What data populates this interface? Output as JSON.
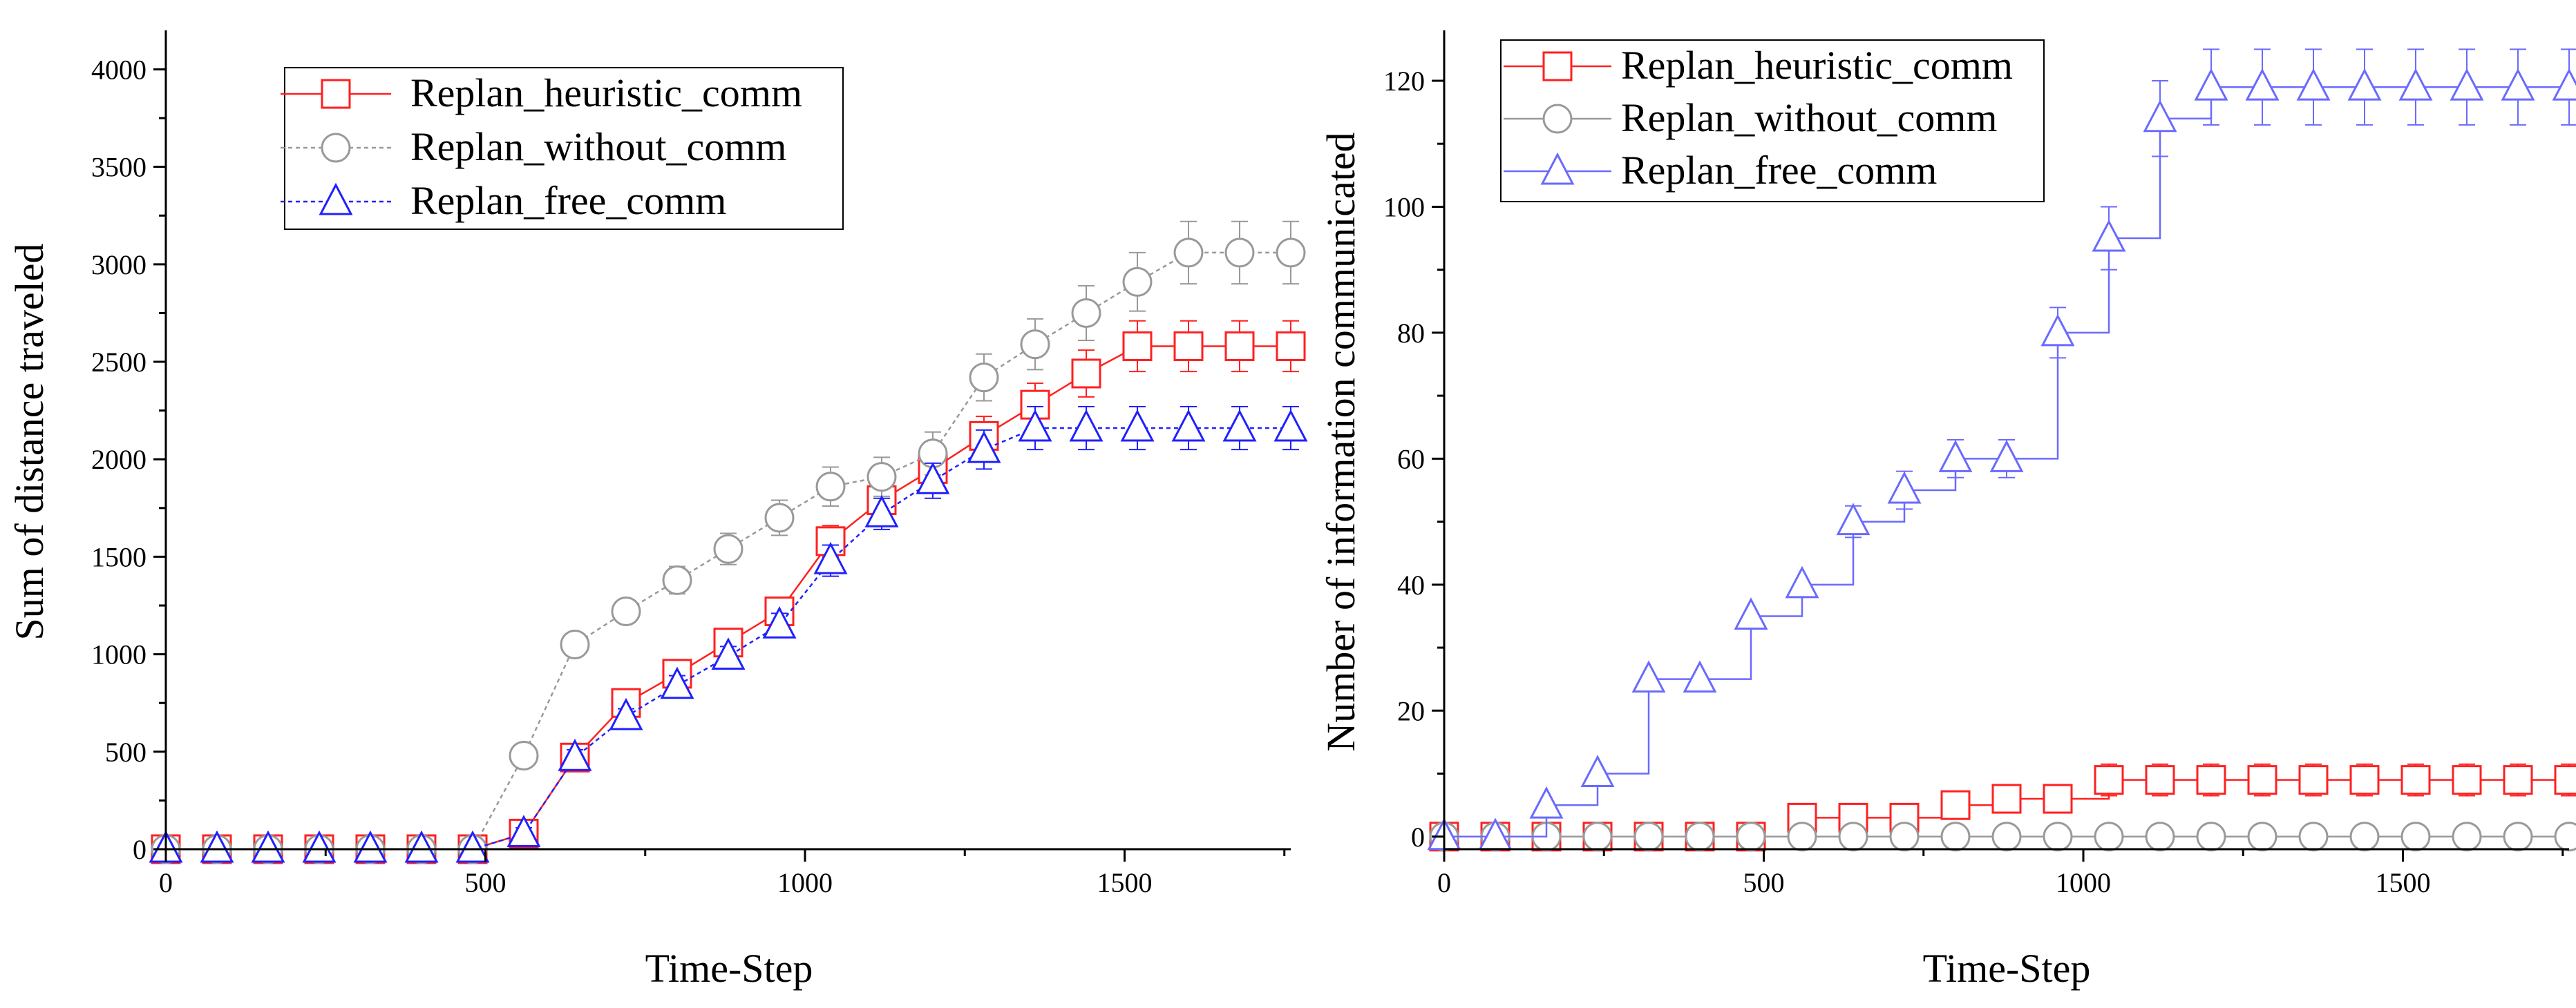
{
  "chart_data": [
    {
      "type": "line",
      "xlabel": "Time-Step",
      "ylabel": "Sum of distance traveled",
      "xlim": [
        0,
        1760
      ],
      "ylim": [
        0,
        4200
      ],
      "xticks": [
        0,
        500,
        1000,
        1500
      ],
      "yticks": [
        0,
        500,
        1000,
        1500,
        2000,
        2500,
        3000,
        3500,
        4000
      ],
      "legend_position": "top-left",
      "x": [
        0,
        80,
        160,
        240,
        320,
        400,
        480,
        560,
        640,
        720,
        800,
        880,
        960,
        1040,
        1120,
        1200,
        1280,
        1360,
        1440,
        1520,
        1600,
        1680,
        1760
      ],
      "series": [
        {
          "name": "Replan_heuristic_comm",
          "color": "#ff2020",
          "marker": "square",
          "line": "solid",
          "values": [
            0,
            0,
            0,
            0,
            0,
            0,
            0,
            80,
            470,
            750,
            900,
            1060,
            1220,
            1580,
            1790,
            1950,
            2120,
            2280,
            2440,
            2580,
            2580,
            2580,
            2580
          ],
          "errors": [
            0,
            0,
            0,
            0,
            0,
            0,
            0,
            30,
            40,
            40,
            50,
            50,
            60,
            80,
            80,
            90,
            100,
            110,
            120,
            130,
            130,
            130,
            130
          ]
        },
        {
          "name": "Replan_without_comm",
          "color": "#999999",
          "marker": "circle",
          "line": "dotted",
          "values": [
            0,
            0,
            0,
            0,
            0,
            0,
            0,
            480,
            1050,
            1220,
            1380,
            1540,
            1700,
            1860,
            1910,
            2030,
            2420,
            2590,
            2750,
            2910,
            3060,
            3060,
            3060
          ],
          "errors": [
            0,
            0,
            0,
            0,
            0,
            0,
            0,
            30,
            50,
            60,
            70,
            80,
            90,
            100,
            100,
            110,
            120,
            130,
            140,
            150,
            160,
            160,
            160
          ]
        },
        {
          "name": "Replan_free_comm",
          "color": "#2020ff",
          "marker": "triangle",
          "line": "dotted",
          "values": [
            0,
            0,
            0,
            0,
            0,
            0,
            0,
            80,
            470,
            680,
            840,
            990,
            1150,
            1480,
            1720,
            1890,
            2050,
            2160,
            2160,
            2160,
            2160,
            2160,
            2160
          ],
          "errors": [
            0,
            0,
            0,
            0,
            0,
            0,
            0,
            30,
            40,
            40,
            50,
            50,
            60,
            80,
            80,
            90,
            100,
            110,
            110,
            110,
            110,
            110,
            110
          ]
        }
      ]
    },
    {
      "type": "line",
      "xlabel": "Time-Step",
      "ylabel": "Number of information communicated",
      "xlim": [
        0,
        1760
      ],
      "ylim": [
        -2,
        128
      ],
      "xticks": [
        0,
        500,
        1000,
        1500
      ],
      "yticks": [
        0,
        20,
        40,
        60,
        80,
        100,
        120
      ],
      "legend_position": "top-left",
      "x": [
        0,
        80,
        160,
        240,
        320,
        400,
        480,
        560,
        640,
        720,
        800,
        880,
        960,
        1040,
        1120,
        1200,
        1280,
        1360,
        1440,
        1520,
        1600,
        1680,
        1760
      ],
      "series": [
        {
          "name": "Replan_heuristic_comm",
          "color": "#ff2020",
          "marker": "square",
          "line": "solid",
          "step": true,
          "values": [
            0,
            0,
            0,
            0,
            0,
            0,
            0,
            3,
            3,
            3,
            5,
            6,
            6,
            9,
            9,
            9,
            9,
            9,
            9,
            9,
            9,
            9,
            9
          ],
          "errors": [
            0,
            0,
            0,
            0,
            0,
            0,
            0,
            1.5,
            1.5,
            1.5,
            2,
            2,
            2,
            2.5,
            2.5,
            2.5,
            2.5,
            2.5,
            2.5,
            2.5,
            2.5,
            2.5,
            2.5
          ]
        },
        {
          "name": "Replan_without_comm",
          "color": "#999999",
          "marker": "circle",
          "line": "solid",
          "values": [
            0,
            0,
            0,
            0,
            0,
            0,
            0,
            0,
            0,
            0,
            0,
            0,
            0,
            0,
            0,
            0,
            0,
            0,
            0,
            0,
            0,
            0,
            0
          ],
          "errors": [
            0,
            0,
            0,
            0,
            0,
            0,
            0,
            0,
            0,
            0,
            0,
            0,
            0,
            0,
            0,
            0,
            0,
            0,
            0,
            0,
            0,
            0,
            0
          ]
        },
        {
          "name": "Replan_free_comm",
          "color": "#6a6aff",
          "marker": "triangle",
          "line": "solid",
          "step": true,
          "values": [
            0,
            0,
            5,
            10,
            25,
            25,
            35,
            40,
            50,
            55,
            60,
            60,
            80,
            95,
            114,
            119,
            119,
            119,
            119,
            119,
            119,
            119,
            119
          ],
          "errors": [
            0,
            0,
            0,
            0,
            0,
            0,
            0,
            0,
            2.5,
            3,
            3,
            3,
            4,
            5,
            6,
            6,
            6,
            6,
            6,
            6,
            6,
            6,
            6
          ]
        }
      ]
    }
  ]
}
